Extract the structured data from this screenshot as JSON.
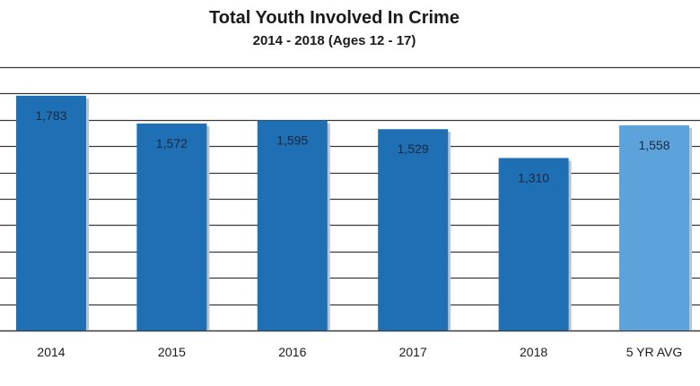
{
  "chart_data": {
    "type": "bar",
    "title": "Total Youth Involved In Crime",
    "subtitle": "2014 - 2018 (Ages 12 - 17)",
    "categories": [
      "2014",
      "2015",
      "2016",
      "2017",
      "2018",
      "5 YR AVG"
    ],
    "values": [
      1783,
      1572,
      1595,
      1529,
      1310,
      1558
    ],
    "value_labels": [
      "1,783",
      "1,572",
      "1,595",
      "1,529",
      "1,310",
      "1,558"
    ],
    "xlabel": "",
    "ylabel": "",
    "ylim": [
      0,
      2000
    ],
    "grid": true,
    "legend": "none",
    "colors": {
      "bar": "#1f6fb5",
      "average_bar": "#5da3db",
      "grid": "#3a3a3a"
    }
  }
}
